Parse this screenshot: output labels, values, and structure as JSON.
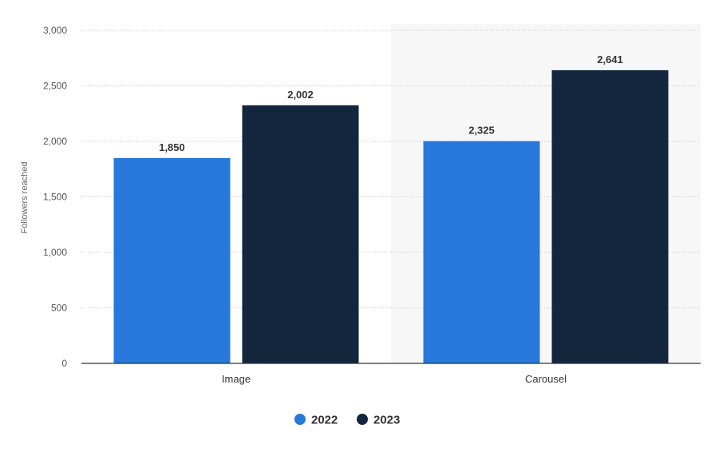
{
  "chart_data": {
    "type": "bar",
    "categories": [
      "Image",
      "Carousel"
    ],
    "series": [
      {
        "name": "2022",
        "values": [
          1850,
          2002
        ],
        "color": "#2878dc"
      },
      {
        "name": "2023",
        "values": [
          2325,
          2641
        ],
        "color": "#13263e"
      }
    ],
    "value_labels": [
      [
        "1,850",
        "2,002"
      ],
      [
        "2,325",
        "2,641"
      ]
    ],
    "ylabel": "Followers reached",
    "ylim": [
      0,
      3000
    ],
    "yticks": [
      0,
      500,
      1000,
      1500,
      2000,
      2500,
      3000
    ],
    "ytick_labels": [
      "0",
      "500",
      "1,000",
      "1,500",
      "2,000",
      "2,500",
      "3,000"
    ],
    "grid": true,
    "legend_position": "bottom-center",
    "highlight_category": "Carousel",
    "colors": {
      "highlight_band": "#f7f7f8",
      "grid": "#c8c8c8",
      "axis": "#333333"
    }
  }
}
